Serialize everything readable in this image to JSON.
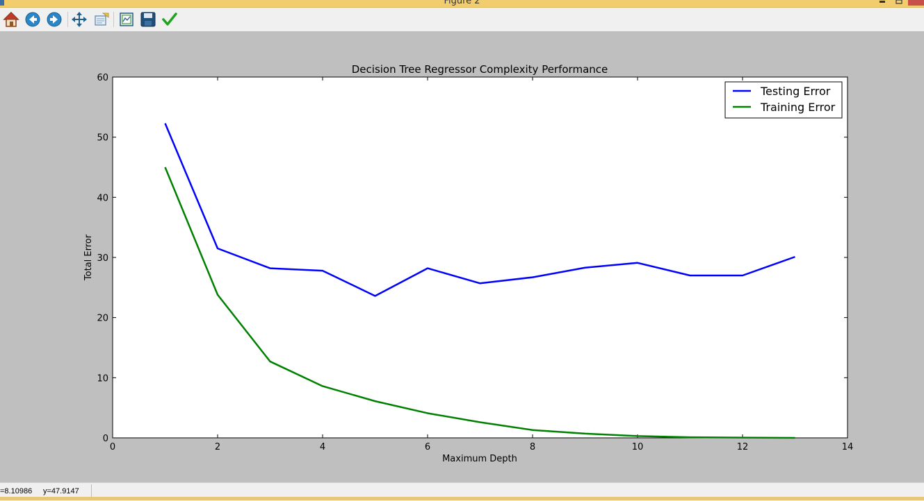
{
  "window": {
    "title": "Figure 2"
  },
  "toolbar": {
    "buttons": [
      {
        "name": "home",
        "icon": "home-icon"
      },
      {
        "name": "back",
        "icon": "back-arrow-icon"
      },
      {
        "name": "forward",
        "icon": "forward-arrow-icon"
      },
      {
        "name": "pan",
        "icon": "pan-move-icon"
      },
      {
        "name": "zoom",
        "icon": "zoom-rect-icon"
      },
      {
        "name": "subplots",
        "icon": "subplots-config-icon"
      },
      {
        "name": "save",
        "icon": "save-disk-icon"
      },
      {
        "name": "edit",
        "icon": "checkmark-edit-icon"
      }
    ]
  },
  "status": {
    "x_readout": "=8.10986",
    "y_readout": "y=47.9147"
  },
  "colors": {
    "testing": "#0000ff",
    "training": "#008000",
    "canvas": "#bfbfbf",
    "plot_bg": "#ffffff"
  },
  "chart_data": {
    "type": "line",
    "title": "Decision Tree Regressor Complexity Performance",
    "xlabel": "Maximum Depth",
    "ylabel": "Total Error",
    "xlim": [
      0,
      14
    ],
    "ylim": [
      0,
      60
    ],
    "xticks": [
      0,
      2,
      4,
      6,
      8,
      10,
      12,
      14
    ],
    "yticks": [
      0,
      10,
      20,
      30,
      40,
      50,
      60
    ],
    "grid": false,
    "legend_position": "top-right",
    "x": [
      1,
      2,
      3,
      4,
      5,
      6,
      7,
      8,
      9,
      10,
      11,
      12,
      13
    ],
    "series": [
      {
        "name": "Testing Error",
        "color": "#0000ff",
        "values": [
          52.3,
          31.5,
          28.2,
          27.8,
          23.6,
          28.2,
          25.7,
          26.7,
          28.3,
          29.1,
          27.0,
          27.0,
          30.1
        ]
      },
      {
        "name": "Training Error",
        "color": "#008000",
        "values": [
          45.0,
          23.8,
          12.7,
          8.6,
          6.1,
          4.1,
          2.6,
          1.3,
          0.7,
          0.3,
          0.1,
          0.05,
          0.0
        ]
      }
    ]
  }
}
